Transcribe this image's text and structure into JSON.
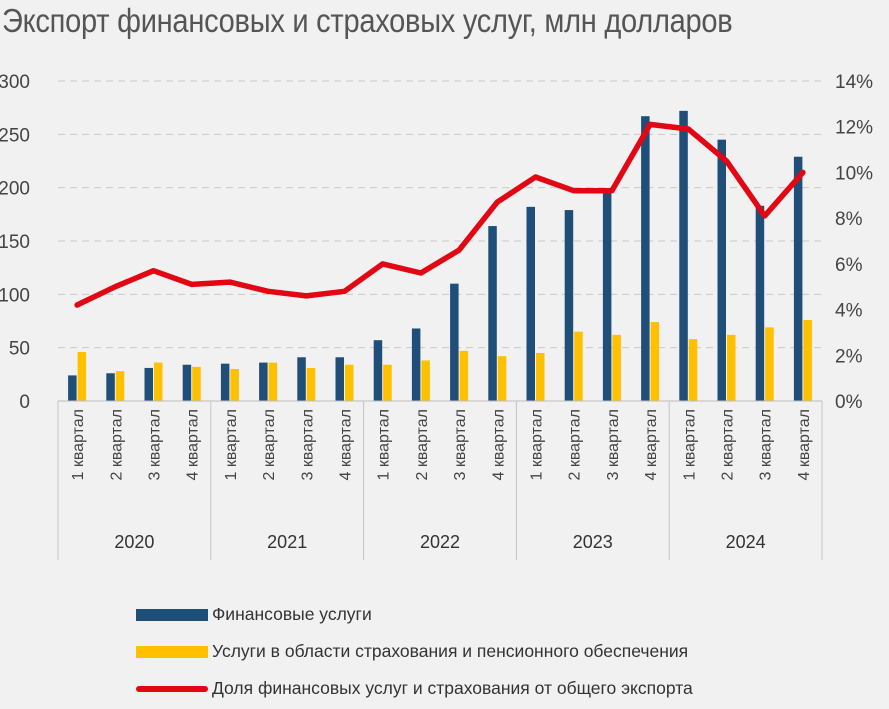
{
  "chart_data": {
    "type": "bar",
    "title": "Экспорт финансовых и страховых услуг, млн долларов",
    "categories": [
      "1 квартал",
      "2 квартал",
      "3 квартал",
      "4 квартал"
    ],
    "years": [
      "2020",
      "2021",
      "2022",
      "2023",
      "2024"
    ],
    "x": [
      "2020 1 квартал",
      "2020 2 квартал",
      "2020 3 квартал",
      "2020 4 квартал",
      "2021 1 квартал",
      "2021 2 квартал",
      "2021 3 квартал",
      "2021 4 квартал",
      "2022 1 квартал",
      "2022 2 квартал",
      "2022 3 квартал",
      "2022 4 квартал",
      "2023 1 квартал",
      "2023 2 квартал",
      "2023 3 квартал",
      "2023 4 квартал",
      "2024 1 квартал",
      "2024 2 квартал",
      "2024 3 квартал",
      "2024 4 квартал"
    ],
    "series": [
      {
        "name": "Финансовые услуги",
        "type": "bar",
        "axis": "left",
        "color": "#1f4e79",
        "values": [
          24,
          26,
          31,
          34,
          35,
          36,
          41,
          41,
          57,
          68,
          110,
          164,
          182,
          179,
          199,
          267,
          272,
          245,
          183,
          229
        ]
      },
      {
        "name": "Услуги в области страхования и пенсионного обеспечения",
        "type": "bar",
        "axis": "left",
        "color": "#ffc000",
        "values": [
          46,
          28,
          36,
          32,
          30,
          36,
          31,
          34,
          34,
          38,
          47,
          42,
          45,
          65,
          62,
          74,
          58,
          62,
          69,
          76
        ]
      },
      {
        "name": "Доля финансовых услуг и страхования от общего экспорта",
        "type": "line",
        "axis": "right",
        "color": "#e30613",
        "values": [
          4.2,
          5.0,
          5.7,
          5.1,
          5.2,
          4.8,
          4.6,
          4.8,
          6.0,
          5.6,
          6.6,
          8.7,
          9.8,
          9.2,
          9.2,
          12.1,
          11.9,
          10.5,
          8.1,
          10.0
        ]
      }
    ],
    "y_left": {
      "min": 0,
      "max": 300,
      "ticks": [
        "0",
        "50",
        "100",
        "150",
        "200",
        "250",
        "300"
      ]
    },
    "y_right": {
      "min": 0,
      "max": 14,
      "ticks": [
        "0%",
        "2%",
        "4%",
        "6%",
        "8%",
        "10%",
        "12%",
        "14%"
      ]
    },
    "grid": "horizontal-dashed",
    "legend_position": "bottom"
  }
}
